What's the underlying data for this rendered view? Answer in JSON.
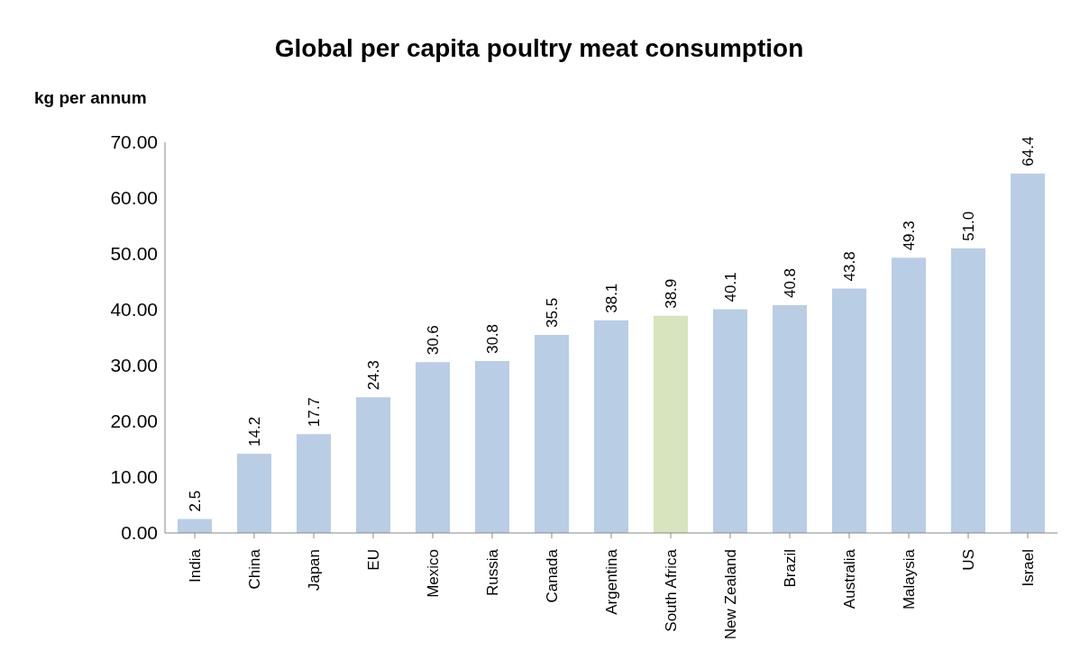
{
  "chart_data": {
    "type": "bar",
    "title": "Global per capita poultry meat consumption",
    "ylabel": "kg per annum",
    "categories": [
      "India",
      "China",
      "Japan",
      "EU",
      "Mexico",
      "Russia",
      "Canada",
      "Argentina",
      "South Africa",
      "New Zealand",
      "Brazil",
      "Australia",
      "Malaysia",
      "US",
      "Israel"
    ],
    "values": [
      2.5,
      14.2,
      17.7,
      24.3,
      30.6,
      30.8,
      35.5,
      38.1,
      38.9,
      40.1,
      40.8,
      43.8,
      49.3,
      51.0,
      64.4
    ],
    "colors": [
      "#b9cde5",
      "#b9cde5",
      "#b9cde5",
      "#b9cde5",
      "#b9cde5",
      "#b9cde5",
      "#b9cde5",
      "#b9cde5",
      "#d7e4bd",
      "#b9cde5",
      "#b9cde5",
      "#b9cde5",
      "#b9cde5",
      "#b9cde5",
      "#b9cde5"
    ],
    "value_labels": [
      "2.5",
      "14.2",
      "17.7",
      "24.3",
      "30.6",
      "30.8",
      "35.5",
      "38.1",
      "38.9",
      "40.1",
      "40.8",
      "43.8",
      "49.3",
      "51.0",
      "64.4"
    ],
    "ylim": [
      0,
      70
    ],
    "yticks": [
      {
        "value": 0,
        "label": "0.00"
      },
      {
        "value": 10,
        "label": "10.00"
      },
      {
        "value": 20,
        "label": "20.00"
      },
      {
        "value": 30,
        "label": "30.00"
      },
      {
        "value": 40,
        "label": "40.00"
      },
      {
        "value": 50,
        "label": "50.00"
      },
      {
        "value": 60,
        "label": "60.00"
      },
      {
        "value": 70,
        "label": "70.00"
      }
    ],
    "grid": false,
    "legend": false
  }
}
